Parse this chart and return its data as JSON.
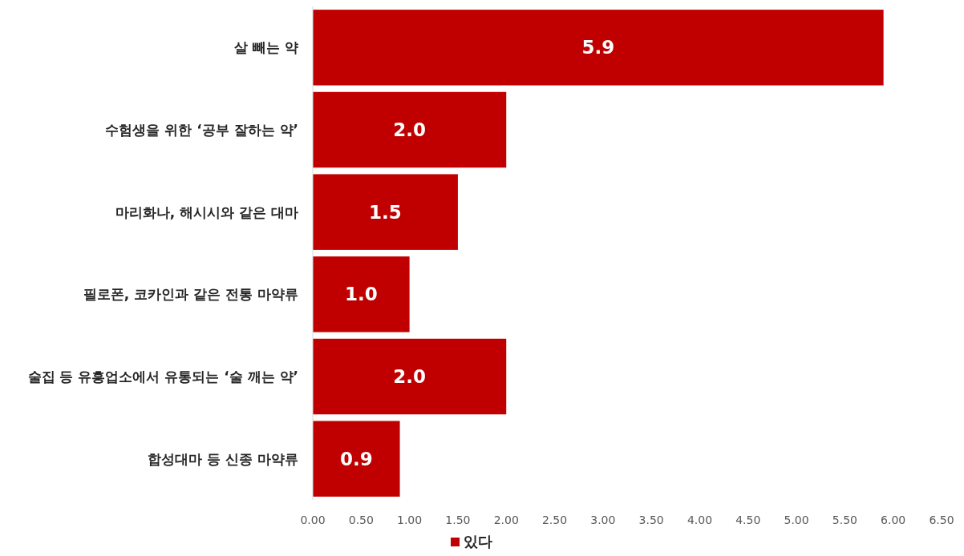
{
  "chart_data": {
    "type": "bar",
    "orientation": "horizontal",
    "categories": [
      "살 빼는 약",
      "수험생을 위한 ‘공부 잘하는 약’",
      "마리화나, 해시시와 같은 대마",
      "필로폰, 코카인과 같은 전통 마약류",
      "술집 등 유흥업소에서 유통되는 ‘술 깨는 약’",
      "합성대마 등 신종 마약류"
    ],
    "series": [
      {
        "name": "있다",
        "color": "#c00000",
        "values": [
          5.9,
          2.0,
          1.5,
          1.0,
          2.0,
          0.9
        ],
        "value_labels": [
          "5.9",
          "2.0",
          "1.5",
          "1.0",
          "2.0",
          "0.9"
        ]
      }
    ],
    "xlim": [
      0,
      6.5
    ],
    "xticks": [
      {
        "value": 0,
        "label": "0.00"
      },
      {
        "value": 0.5,
        "label": "0.50"
      },
      {
        "value": 1,
        "label": "1.00"
      },
      {
        "value": 1.5,
        "label": "1.50"
      },
      {
        "value": 2,
        "label": "2.00"
      },
      {
        "value": 2.5,
        "label": "2.50"
      },
      {
        "value": 3,
        "label": "3.00"
      },
      {
        "value": 3.5,
        "label": "3.50"
      },
      {
        "value": 4,
        "label": "4.00"
      },
      {
        "value": 4.5,
        "label": "4.50"
      },
      {
        "value": 5,
        "label": "5.00"
      },
      {
        "value": 5.5,
        "label": "5.50"
      },
      {
        "value": 6,
        "label": "6.00"
      },
      {
        "value": 6.5,
        "label": "6.50"
      }
    ],
    "grid": false,
    "legend": "bottom"
  }
}
